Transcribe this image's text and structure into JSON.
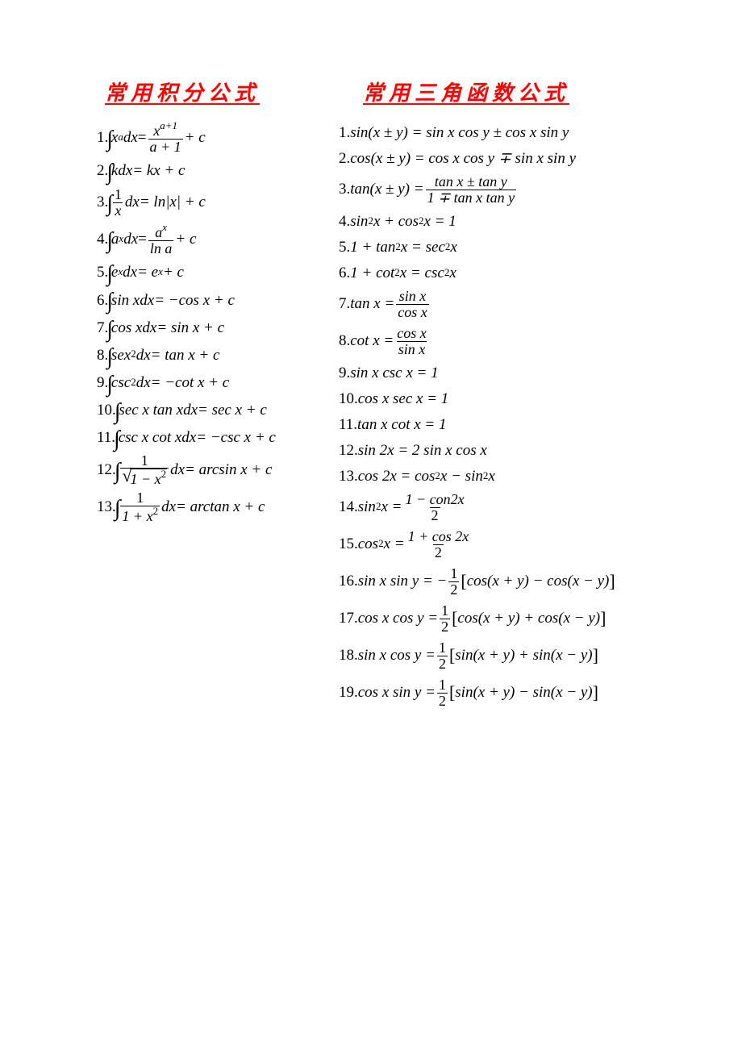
{
  "heading_left": "常用积分公式",
  "heading_right": "常用三角函数公式",
  "colors": {
    "heading": "#ff0000",
    "text": "#000000",
    "background": "#ffffff"
  },
  "fonts": {
    "heading_family": "KaiTi",
    "heading_size_pt": 20,
    "heading_style": "bold italic underline",
    "body_family": "Times New Roman",
    "body_size_pt": 14
  },
  "integrals": {
    "n1": "1.",
    "n2": "2.",
    "n3": "3.",
    "n4": "4.",
    "n5": "5.",
    "n6": "6.",
    "n7": "7.",
    "n8": "8.",
    "n9": "9.",
    "n10": "10.",
    "n11": "11.",
    "n12": "12.",
    "n13": "13.",
    "f1_lhs_a": "x",
    "f1_lhs_b": "a",
    "f1_lhs_c": "dx",
    "f1_rhs_n_a": "x",
    "f1_rhs_n_b": "a+1",
    "f1_rhs_d": "a + 1",
    "f1_tail": " + c",
    "f2_lhs": "kdx",
    "f2_rhs": " = kx + c",
    "f3_n": "1",
    "f3_d": "x",
    "f3_dx": "dx",
    "f3_rhs": " = ln|x| + c",
    "f4_lhs_a": "a",
    "f4_lhs_b": "x",
    "f4_lhs_c": "dx",
    "f4_rhs_n_a": "a",
    "f4_rhs_n_b": "x",
    "f4_rhs_d": "ln a",
    "f4_tail": " + c",
    "f5_lhs_a": "e",
    "f5_lhs_b": "x",
    "f5_lhs_c": "dx",
    "f5_rhs_a": " = e",
    "f5_rhs_b": "x",
    "f5_tail": " + c",
    "f6_lhs": "sin xdx",
    "f6_rhs": " = −cos x + c",
    "f7_lhs": "cos xdx",
    "f7_rhs": " = sin x + c",
    "f8_lhs_a": "sex",
    "f8_lhs_b": "2",
    "f8_lhs_c": "dx",
    "f8_rhs": " = tan x + c",
    "f9_lhs_a": "csc",
    "f9_lhs_b": "2",
    "f9_lhs_c": "dx",
    "f9_rhs": " = −cot x + c",
    "f10_lhs": "sec x tan xdx",
    "f10_rhs": " = sec x + c",
    "f11_lhs": "csc x cot xdx",
    "f11_rhs": " = −csc x + c",
    "f12_n": "1",
    "f12_sq": "1 − x",
    "f12_sq_e": "2",
    "f12_dx": "dx",
    "f12_rhs": " = arcsin x + c",
    "f13_n": "1",
    "f13_d_a": "1 + x",
    "f13_d_b": "2",
    "f13_dx": "dx",
    "f13_rhs": " = arctan x + c"
  },
  "trig": {
    "n1": "1.",
    "n2": "2.",
    "n3": "3.",
    "n4": "4.",
    "n5": "5.",
    "n6": "6.",
    "n7": "7.",
    "n8": "8.",
    "n9": "9.",
    "n10": "10.",
    "n11": "11.",
    "n12": "12.",
    "n13": "13.",
    "n14": "14.",
    "n15": "15.",
    "n16": "16.",
    "n17": "17.",
    "n18": "18.",
    "n19": "19.",
    "f1": "sin(x ± y) = sin x cos y ± cos x sin y",
    "f2": "cos(x ± y) = cos x cos y ∓ sin x sin y",
    "f3_lhs": "tan(x ± y) = ",
    "f3_n": "tan x ± tan y",
    "f3_d": "1 ∓ tan x tan y",
    "f4_a": "sin",
    "f4_b": "2",
    "f4_c": " x + cos",
    "f4_d": "2",
    "f4_e": " x = 1",
    "f5_a": "1 + tan",
    "f5_b": "2",
    "f5_c": " x = sec",
    "f5_d": "2",
    "f5_e": " x",
    "f6_a": "1 + cot",
    "f6_b": "2",
    "f6_c": " x = csc",
    "f6_d": "2",
    "f6_e": " x",
    "f7_lhs": "tan x = ",
    "f7_n": "sin x",
    "f7_d": "cos x",
    "f8_lhs": "cot x = ",
    "f8_n": "cos x",
    "f8_d": "sin x",
    "f9": "sin x csc x = 1",
    "f10": "cos x sec x = 1",
    "f11": "tan x cot x = 1",
    "f12": "sin 2x = 2 sin x cos x",
    "f13_a": "cos 2x = cos",
    "f13_b": "2",
    "f13_c": " x − sin",
    "f13_d": "2",
    "f13_e": " x",
    "f14_lhs_a": "sin",
    "f14_lhs_b": "2",
    "f14_lhs_c": " x = ",
    "f14_n": "1 − con2x",
    "f14_d": "2",
    "f15_lhs_a": "cos",
    "f15_lhs_b": "2",
    "f15_lhs_c": " x = ",
    "f15_n": "1 + cos 2x",
    "f15_d": "2",
    "f16_lhs": "sin x sin y = −",
    "f16_n": "1",
    "f16_d": "2",
    "f16_rhs": "cos(x + y) − cos(x − y)",
    "f17_lhs": "cos x cos y = ",
    "f17_n": "1",
    "f17_d": "2",
    "f17_rhs": "cos(x + y) + cos(x − y)",
    "f18_lhs": "sin x cos y = ",
    "f18_n": "1",
    "f18_d": "2",
    "f18_rhs": "sin(x + y) + sin(x − y)",
    "f19_lhs": "cos x sin y = ",
    "f19_n": "1",
    "f19_d": "2",
    "f19_rhs": "sin(x + y) − sin(x − y)"
  }
}
